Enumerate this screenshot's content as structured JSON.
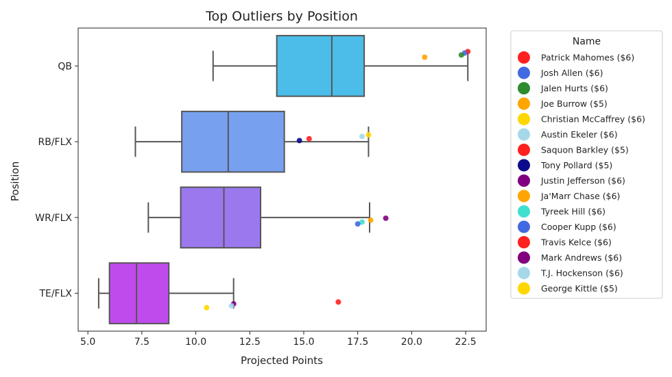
{
  "chart_data": {
    "type": "box",
    "title": "Top Outliers by Position",
    "xlabel": "Projected Points",
    "ylabel": "Position",
    "xlim": [
      4.55,
      23.45
    ],
    "xticks": [
      5.0,
      7.5,
      10.0,
      12.5,
      15.0,
      17.5,
      20.0,
      22.5
    ],
    "xtick_labels": [
      "5.0",
      "7.5",
      "10.0",
      "12.5",
      "15.0",
      "17.5",
      "20.0",
      "22.5"
    ],
    "categories": [
      "QB",
      "RB/FLX",
      "WR/FLX",
      "TE/FLX"
    ],
    "boxes": [
      {
        "category": "QB",
        "whisker_low": 10.8,
        "q1": 13.75,
        "median": 16.3,
        "q3": 17.8,
        "whisker_high": 22.6,
        "color": "#4bbde8"
      },
      {
        "category": "RB/FLX",
        "whisker_low": 7.2,
        "q1": 9.35,
        "median": 11.5,
        "q3": 14.1,
        "whisker_high": 18.0,
        "color": "#77a0ef"
      },
      {
        "category": "WR/FLX",
        "whisker_low": 7.8,
        "q1": 9.3,
        "median": 11.3,
        "q3": 13.0,
        "whisker_high": 18.05,
        "color": "#9b78ee"
      },
      {
        "category": "TE/FLX",
        "whisker_low": 5.5,
        "q1": 6.0,
        "median": 7.25,
        "q3": 8.75,
        "whisker_high": 11.75,
        "color": "#c04bed"
      }
    ],
    "points": [
      {
        "name": "Patrick Mahomes ($6)",
        "category": "QB",
        "x": 22.6,
        "jitter": -0.38,
        "color": "#ff2020"
      },
      {
        "name": "Josh Allen ($6)",
        "category": "QB",
        "x": 22.45,
        "jitter": -0.34,
        "color": "#4169e1"
      },
      {
        "name": "Jalen Hurts ($6)",
        "category": "QB",
        "x": 22.3,
        "jitter": -0.29,
        "color": "#2e8b2e"
      },
      {
        "name": "Joe Burrow ($5)",
        "category": "QB",
        "x": 20.6,
        "jitter": -0.23,
        "color": "#ffa500"
      },
      {
        "name": "Christian McCaffrey ($6)",
        "category": "RB/FLX",
        "x": 18.0,
        "jitter": -0.18,
        "color": "#ffd700"
      },
      {
        "name": "Austin Ekeler ($6)",
        "category": "RB/FLX",
        "x": 17.7,
        "jitter": -0.14,
        "color": "#a6d8ea"
      },
      {
        "name": "Saquon Barkley ($5)",
        "category": "RB/FLX",
        "x": 15.25,
        "jitter": -0.08,
        "color": "#ff2020"
      },
      {
        "name": "Tony Pollard ($5)",
        "category": "RB/FLX",
        "x": 14.8,
        "jitter": -0.03,
        "color": "#0b0b8b"
      },
      {
        "name": "Justin Jefferson ($6)",
        "category": "WR/FLX",
        "x": 18.8,
        "jitter": 0.02,
        "color": "#800080"
      },
      {
        "name": "Ja'Marr Chase ($6)",
        "category": "WR/FLX",
        "x": 18.1,
        "jitter": 0.07,
        "color": "#ffa500"
      },
      {
        "name": "Tyreek Hill ($6)",
        "category": "WR/FLX",
        "x": 17.7,
        "jitter": 0.12,
        "color": "#40e0d0"
      },
      {
        "name": "Cooper Kupp ($6)",
        "category": "WR/FLX",
        "x": 17.5,
        "jitter": 0.17,
        "color": "#4169e1"
      },
      {
        "name": "Travis Kelce ($6)",
        "category": "TE/FLX",
        "x": 16.6,
        "jitter": 0.23,
        "color": "#ff2020"
      },
      {
        "name": "Mark Andrews ($6)",
        "category": "TE/FLX",
        "x": 11.75,
        "jitter": 0.28,
        "color": "#800080"
      },
      {
        "name": "T.J. Hockenson ($6)",
        "category": "TE/FLX",
        "x": 11.65,
        "jitter": 0.33,
        "color": "#a6d8ea"
      },
      {
        "name": "George Kittle ($5)",
        "category": "TE/FLX",
        "x": 10.5,
        "jitter": 0.38,
        "color": "#ffd700"
      }
    ],
    "legend": {
      "title": "Name",
      "placement": "outside-right",
      "entries": [
        {
          "label": "Patrick Mahomes ($6)",
          "color": "#ff2020"
        },
        {
          "label": "Josh Allen ($6)",
          "color": "#4169e1"
        },
        {
          "label": "Jalen Hurts ($6)",
          "color": "#2e8b2e"
        },
        {
          "label": "Joe Burrow ($5)",
          "color": "#ffa500"
        },
        {
          "label": "Christian McCaffrey ($6)",
          "color": "#ffd700"
        },
        {
          "label": "Austin Ekeler ($6)",
          "color": "#a6d8ea"
        },
        {
          "label": "Saquon Barkley ($5)",
          "color": "#ff2020"
        },
        {
          "label": "Tony Pollard ($5)",
          "color": "#0b0b8b"
        },
        {
          "label": "Justin Jefferson ($6)",
          "color": "#800080"
        },
        {
          "label": "Ja'Marr Chase ($6)",
          "color": "#ffa500"
        },
        {
          "label": "Tyreek Hill ($6)",
          "color": "#40e0d0"
        },
        {
          "label": "Cooper Kupp ($6)",
          "color": "#4169e1"
        },
        {
          "label": "Travis Kelce ($6)",
          "color": "#ff2020"
        },
        {
          "label": "Mark Andrews ($6)",
          "color": "#800080"
        },
        {
          "label": "T.J. Hockenson ($6)",
          "color": "#a6d8ea"
        },
        {
          "label": "George Kittle ($5)",
          "color": "#ffd700"
        }
      ]
    },
    "grid": false
  }
}
